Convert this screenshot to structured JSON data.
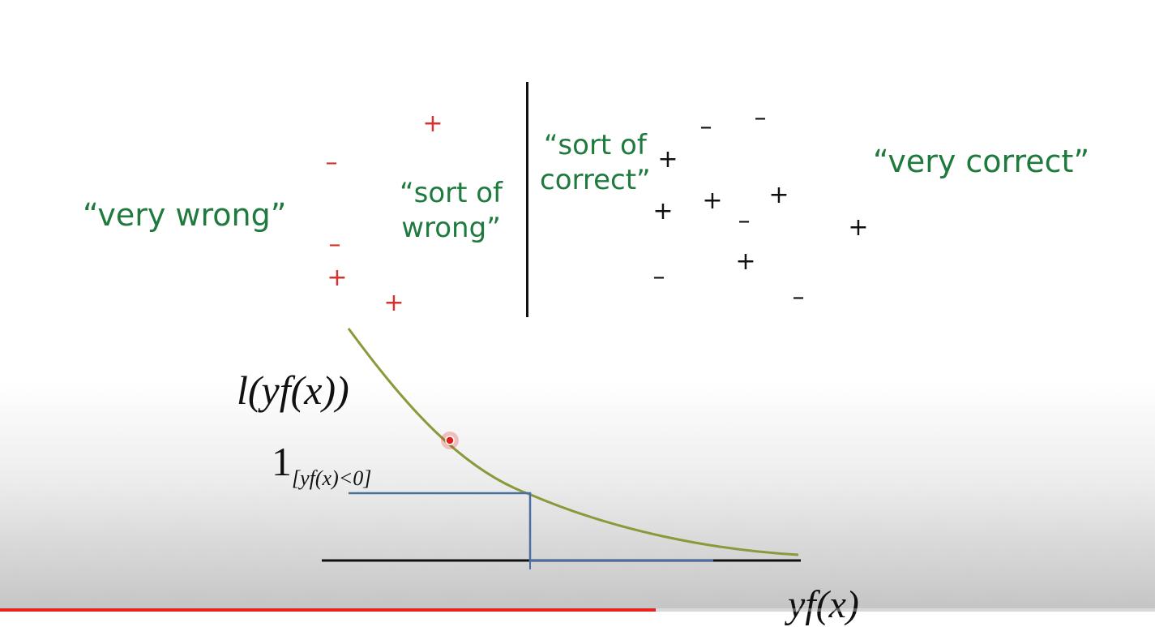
{
  "labels": {
    "very_wrong": "“very wrong”",
    "sort_of_wrong_line1": "“sort of",
    "sort_of_wrong_line2": "wrong”",
    "sort_of_correct_line1": "“sort of",
    "sort_of_correct_line2": "correct”",
    "very_correct": "“very correct”"
  },
  "math": {
    "loss_label": "l(yf(x))",
    "indicator_main": "1",
    "indicator_sub": "[yf(x)<0]",
    "axis_label": "yf(x)"
  },
  "points": {
    "plus": "+",
    "minus": "–",
    "red_count_plus": 3,
    "red_count_minus": 2,
    "black_count_plus": 6,
    "black_count_minus": 5
  },
  "colors": {
    "label_green": "#1f7a3e",
    "misclassified_red": "#d8322e",
    "point_black": "#111111",
    "loss_curve": "#8a9a3a",
    "step_blue": "#4a6fa8",
    "pointer_red": "#e0201c"
  },
  "video_progress": 0.568
}
